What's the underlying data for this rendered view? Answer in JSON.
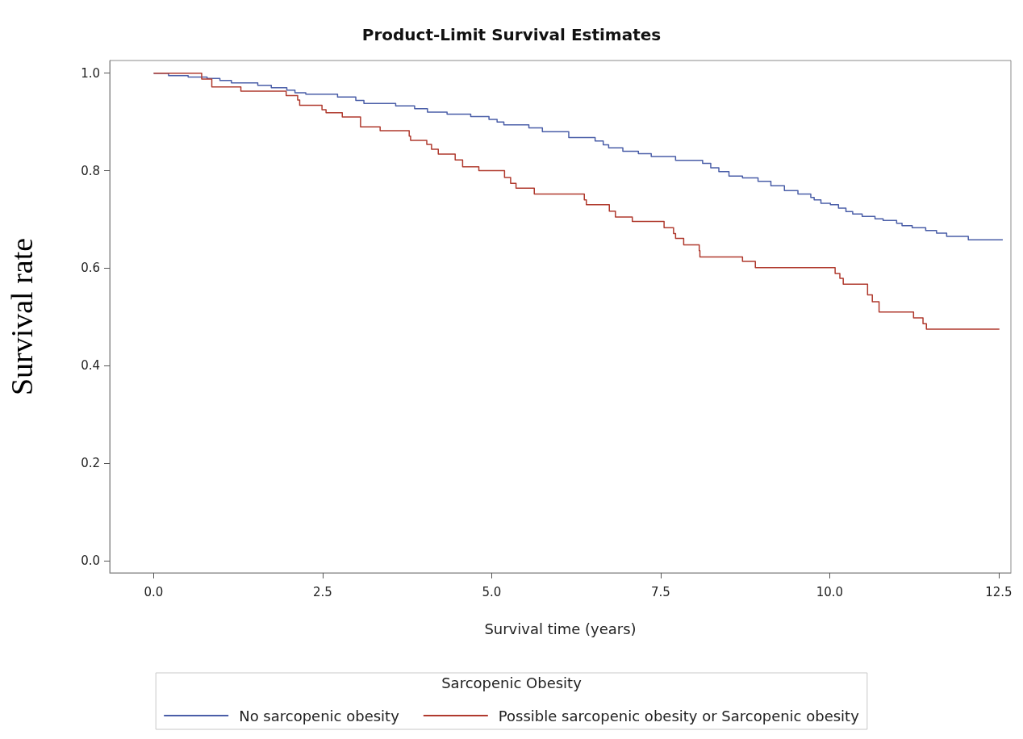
{
  "chart_data": {
    "type": "step",
    "title": "Product-Limit Survival Estimates",
    "xlabel": "Survival time (years)",
    "ylabel": "Survival rate",
    "legend_title": "Sarcopenic Obesity",
    "xlim": [
      -0.65,
      12.68
    ],
    "ylim": [
      -0.025,
      1.026
    ],
    "xticks": [
      {
        "value": 0,
        "label": "0.0"
      },
      {
        "value": 2.5,
        "label": "2.5"
      },
      {
        "value": 5,
        "label": "5.0"
      },
      {
        "value": 7.5,
        "label": "7.5"
      },
      {
        "value": 10,
        "label": "10.0"
      },
      {
        "value": 12.5,
        "label": "12.5"
      }
    ],
    "yticks": [
      {
        "value": 0,
        "label": "0.0"
      },
      {
        "value": 0.2,
        "label": "0.2"
      },
      {
        "value": 0.4,
        "label": "0.4"
      },
      {
        "value": 0.6,
        "label": "0.6"
      },
      {
        "value": 0.8,
        "label": "0.8"
      },
      {
        "value": 1,
        "label": "1.0"
      }
    ],
    "grid": false,
    "legend": "bottom",
    "marker": "none",
    "line_style": "solid",
    "series": [
      {
        "name": "No sarcopenic obesity",
        "color": "#4a5ea8",
        "x": [
          0,
          0.22,
          0.51,
          0.79,
          0.98,
          1.15,
          1.54,
          1.74,
          1.97,
          2.09,
          2.25,
          2.72,
          2.99,
          3.11,
          3.58,
          3.86,
          4.05,
          4.34,
          4.69,
          4.96,
          5.08,
          5.18,
          5.55,
          5.75,
          6.14,
          6.53,
          6.65,
          6.73,
          6.94,
          7.17,
          7.36,
          7.72,
          8.12,
          8.24,
          8.36,
          8.51,
          8.71,
          8.94,
          9.13,
          9.33,
          9.53,
          9.72,
          9.77,
          9.87,
          10.01,
          10.13,
          10.24,
          10.34,
          10.48,
          10.67,
          10.79,
          10.99,
          11.07,
          11.22,
          11.42,
          11.58,
          11.73,
          12.05,
          12.56
        ],
        "values": [
          1,
          0.995,
          0.992,
          0.989,
          0.985,
          0.98,
          0.975,
          0.97,
          0.965,
          0.96,
          0.957,
          0.951,
          0.944,
          0.938,
          0.933,
          0.927,
          0.92,
          0.916,
          0.911,
          0.905,
          0.9,
          0.894,
          0.888,
          0.88,
          0.868,
          0.861,
          0.853,
          0.847,
          0.84,
          0.835,
          0.829,
          0.821,
          0.815,
          0.806,
          0.798,
          0.789,
          0.785,
          0.778,
          0.769,
          0.759,
          0.752,
          0.745,
          0.74,
          0.733,
          0.73,
          0.723,
          0.716,
          0.711,
          0.706,
          0.701,
          0.698,
          0.692,
          0.687,
          0.683,
          0.677,
          0.672,
          0.665,
          0.658,
          0.658
        ]
      },
      {
        "name": "Possible sarcopenic obesity or Sarcopenic obesity",
        "color": "#b03a2e",
        "x": [
          0,
          0.71,
          0.86,
          1.29,
          1.96,
          2.13,
          2.16,
          2.49,
          2.55,
          2.79,
          3.06,
          3.35,
          3.78,
          3.8,
          4.04,
          4.11,
          4.21,
          4.46,
          4.57,
          4.81,
          5.19,
          5.28,
          5.36,
          5.63,
          6.37,
          6.4,
          6.74,
          6.83,
          7.08,
          7.55,
          7.69,
          7.72,
          7.84,
          8.07,
          8.08,
          8.71,
          8.9,
          10.08,
          10.15,
          10.2,
          10.56,
          10.63,
          10.73,
          11.24,
          11.38,
          11.43,
          12.51
        ],
        "values": [
          1,
          0.988,
          0.972,
          0.963,
          0.954,
          0.945,
          0.934,
          0.925,
          0.919,
          0.91,
          0.89,
          0.882,
          0.871,
          0.862,
          0.854,
          0.844,
          0.834,
          0.822,
          0.808,
          0.8,
          0.786,
          0.774,
          0.764,
          0.752,
          0.74,
          0.73,
          0.717,
          0.705,
          0.696,
          0.683,
          0.671,
          0.661,
          0.648,
          0.636,
          0.623,
          0.614,
          0.601,
          0.589,
          0.579,
          0.567,
          0.545,
          0.531,
          0.51,
          0.498,
          0.486,
          0.475,
          0.475
        ]
      }
    ]
  }
}
